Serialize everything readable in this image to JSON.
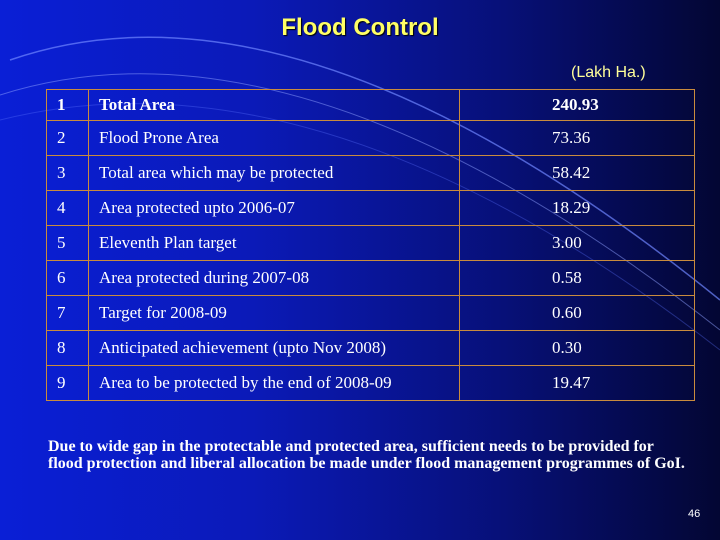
{
  "title": "Flood Control",
  "unit": "(Lakh Ha.)",
  "rows": [
    {
      "no": "1",
      "label": "Total Area",
      "value": "240.93"
    },
    {
      "no": "2",
      "label": "Flood Prone Area",
      "value": "73.36"
    },
    {
      "no": "3",
      "label": "Total area which may be protected",
      "value": "58.42"
    },
    {
      "no": "4",
      "label": "Area protected upto 2006-07",
      "value": "18.29"
    },
    {
      "no": "5",
      "label": "Eleventh Plan target",
      "value": "3.00"
    },
    {
      "no": "6",
      "label": "Area protected during 2007-08",
      "value": "0.58"
    },
    {
      "no": "7",
      "label": "Target for 2008-09",
      "value": "0.60"
    },
    {
      "no": "8",
      "label": "Anticipated achievement (upto Nov 2008)",
      "value": "0.30"
    },
    {
      "no": "9",
      "label": "Area to be protected by the end of 2008-09",
      "value": "19.47"
    }
  ],
  "footnote": "Due to wide gap in the protectable and protected area, sufficient needs to be provided for flood protection and liberal allocation be made under flood management programmes of GoI.",
  "page_number": "46",
  "colors": {
    "title": "#ffff66",
    "border": "#c98b3d",
    "background": "#0a1fd6"
  }
}
